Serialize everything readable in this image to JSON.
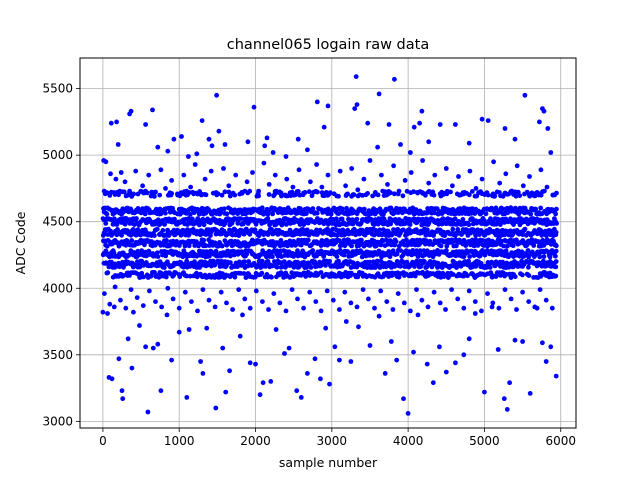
{
  "chart_data": {
    "type": "scatter",
    "title": "channel065 logain raw data",
    "xlabel": "sample number",
    "ylabel": "ADC Code",
    "xlim": [
      -300,
      6200
    ],
    "ylim": [
      2950,
      5730
    ],
    "xticks": [
      0,
      1000,
      2000,
      3000,
      4000,
      5000,
      6000
    ],
    "yticks": [
      3000,
      3500,
      4000,
      4500,
      5000,
      5500
    ],
    "grid": true,
    "marker_color": "#0000ff",
    "series": [
      {
        "x_range": [
          0,
          5950
        ],
        "points": [
          [
            10,
            4960
          ],
          [
            40,
            4950
          ],
          [
            110,
            5240
          ],
          [
            180,
            5250
          ],
          [
            200,
            5080
          ],
          [
            350,
            5310
          ],
          [
            370,
            5330
          ],
          [
            560,
            5230
          ],
          [
            650,
            5340
          ],
          [
            720,
            5060
          ],
          [
            850,
            5030
          ],
          [
            930,
            5120
          ],
          [
            1030,
            5140
          ],
          [
            1120,
            4990
          ],
          [
            1230,
            5010
          ],
          [
            1300,
            5260
          ],
          [
            1390,
            5120
          ],
          [
            1430,
            5070
          ],
          [
            1490,
            5450
          ],
          [
            1520,
            5180
          ],
          [
            1600,
            5080
          ],
          [
            1900,
            5100
          ],
          [
            1980,
            5360
          ],
          [
            2120,
            5070
          ],
          [
            2150,
            5130
          ],
          [
            2230,
            5020
          ],
          [
            2400,
            4990
          ],
          [
            2560,
            5120
          ],
          [
            2680,
            5040
          ],
          [
            2810,
            5400
          ],
          [
            2900,
            5210
          ],
          [
            2950,
            5370
          ],
          [
            3300,
            5350
          ],
          [
            3320,
            5590
          ],
          [
            3330,
            5380
          ],
          [
            3470,
            5240
          ],
          [
            3600,
            5060
          ],
          [
            3620,
            5460
          ],
          [
            3750,
            5230
          ],
          [
            3820,
            5570
          ],
          [
            3900,
            5080
          ],
          [
            4030,
            5020
          ],
          [
            4080,
            5210
          ],
          [
            4150,
            5240
          ],
          [
            4180,
            5330
          ],
          [
            4270,
            5100
          ],
          [
            4420,
            5230
          ],
          [
            4620,
            5230
          ],
          [
            4800,
            5090
          ],
          [
            4970,
            5270
          ],
          [
            5050,
            5260
          ],
          [
            5270,
            5200
          ],
          [
            5400,
            5120
          ],
          [
            5530,
            5450
          ],
          [
            5720,
            5250
          ],
          [
            5760,
            5350
          ],
          [
            5780,
            5330
          ],
          [
            5830,
            5200
          ],
          [
            5870,
            5020
          ],
          [
            0,
            3820
          ],
          [
            60,
            3810
          ],
          [
            80,
            3330
          ],
          [
            120,
            3320
          ],
          [
            150,
            3860
          ],
          [
            210,
            3470
          ],
          [
            250,
            3230
          ],
          [
            260,
            3170
          ],
          [
            330,
            3620
          ],
          [
            380,
            3400
          ],
          [
            400,
            3820
          ],
          [
            480,
            3720
          ],
          [
            560,
            3560
          ],
          [
            590,
            3070
          ],
          [
            660,
            3550
          ],
          [
            720,
            3580
          ],
          [
            760,
            3230
          ],
          [
            840,
            3800
          ],
          [
            900,
            3460
          ],
          [
            1000,
            3670
          ],
          [
            1100,
            3180
          ],
          [
            1130,
            3690
          ],
          [
            1280,
            3450
          ],
          [
            1310,
            3360
          ],
          [
            1360,
            3700
          ],
          [
            1480,
            3100
          ],
          [
            1570,
            3550
          ],
          [
            1610,
            3220
          ],
          [
            1660,
            3380
          ],
          [
            1800,
            3640
          ],
          [
            1830,
            3800
          ],
          [
            1930,
            3440
          ],
          [
            2000,
            3430
          ],
          [
            2060,
            3200
          ],
          [
            2100,
            3290
          ],
          [
            2200,
            3300
          ],
          [
            2270,
            3690
          ],
          [
            2380,
            3510
          ],
          [
            2440,
            3550
          ],
          [
            2540,
            3230
          ],
          [
            2600,
            3180
          ],
          [
            2680,
            3360
          ],
          [
            2780,
            3470
          ],
          [
            2850,
            3320
          ],
          [
            2920,
            3700
          ],
          [
            2970,
            3280
          ],
          [
            3040,
            3560
          ],
          [
            3100,
            3460
          ],
          [
            3190,
            3750
          ],
          [
            3250,
            3450
          ],
          [
            3350,
            3710
          ],
          [
            3500,
            3570
          ],
          [
            3620,
            3790
          ],
          [
            3700,
            3360
          ],
          [
            3780,
            3600
          ],
          [
            3850,
            3460
          ],
          [
            3940,
            3170
          ],
          [
            4000,
            3060
          ],
          [
            4070,
            3520
          ],
          [
            4130,
            3800
          ],
          [
            4250,
            3430
          ],
          [
            4330,
            3290
          ],
          [
            4410,
            3560
          ],
          [
            4500,
            3370
          ],
          [
            4620,
            3440
          ],
          [
            4730,
            3500
          ],
          [
            4800,
            3620
          ],
          [
            4880,
            3810
          ],
          [
            5000,
            3220
          ],
          [
            5100,
            3860
          ],
          [
            5180,
            3540
          ],
          [
            5260,
            3170
          ],
          [
            5300,
            3090
          ],
          [
            5330,
            3290
          ],
          [
            5400,
            3610
          ],
          [
            5500,
            3600
          ],
          [
            5600,
            3210
          ],
          [
            5690,
            3850
          ],
          [
            5760,
            3590
          ],
          [
            5810,
            3450
          ],
          [
            5870,
            3560
          ],
          [
            5940,
            3340
          ],
          [
            30,
            4710
          ],
          [
            100,
            4860
          ],
          [
            170,
            4820
          ],
          [
            240,
            4870
          ],
          [
            290,
            4800
          ],
          [
            350,
            4730
          ],
          [
            430,
            4880
          ],
          [
            520,
            4770
          ],
          [
            600,
            4850
          ],
          [
            680,
            4720
          ],
          [
            760,
            4890
          ],
          [
            820,
            4750
          ],
          [
            900,
            4810
          ],
          [
            980,
            4700
          ],
          [
            1060,
            4850
          ],
          [
            1150,
            4760
          ],
          [
            1210,
            4930
          ],
          [
            1270,
            4720
          ],
          [
            1340,
            4820
          ],
          [
            1420,
            4880
          ],
          [
            1510,
            4710
          ],
          [
            1580,
            4900
          ],
          [
            1650,
            4770
          ],
          [
            1740,
            4850
          ],
          [
            1820,
            4720
          ],
          [
            1890,
            4800
          ],
          [
            1960,
            4870
          ],
          [
            2040,
            4730
          ],
          [
            2110,
            4940
          ],
          [
            2180,
            4780
          ],
          [
            2260,
            4850
          ],
          [
            2340,
            4700
          ],
          [
            2410,
            4820
          ],
          [
            2490,
            4760
          ],
          [
            2570,
            4890
          ],
          [
            2650,
            4720
          ],
          [
            2720,
            4800
          ],
          [
            2800,
            4930
          ],
          [
            2870,
            4760
          ],
          [
            2950,
            4850
          ],
          [
            3030,
            4710
          ],
          [
            3110,
            4880
          ],
          [
            3180,
            4770
          ],
          [
            3260,
            4900
          ],
          [
            3340,
            4740
          ],
          [
            3420,
            4820
          ],
          [
            3500,
            4960
          ],
          [
            3570,
            4720
          ],
          [
            3650,
            4850
          ],
          [
            3730,
            4780
          ],
          [
            3810,
            4920
          ],
          [
            3880,
            4730
          ],
          [
            3960,
            4810
          ],
          [
            4040,
            4870
          ],
          [
            4120,
            4720
          ],
          [
            4190,
            4960
          ],
          [
            4270,
            4790
          ],
          [
            4350,
            4850
          ],
          [
            4420,
            4710
          ],
          [
            4500,
            4900
          ],
          [
            4580,
            4770
          ],
          [
            4660,
            4840
          ],
          [
            4740,
            4720
          ],
          [
            4810,
            4880
          ],
          [
            4890,
            4750
          ],
          [
            4970,
            4820
          ],
          [
            5050,
            4700
          ],
          [
            5120,
            4950
          ],
          [
            5200,
            4790
          ],
          [
            5280,
            4860
          ],
          [
            5360,
            4730
          ],
          [
            5430,
            4920
          ],
          [
            5510,
            4770
          ],
          [
            5590,
            4840
          ],
          [
            5660,
            4710
          ],
          [
            5740,
            4890
          ],
          [
            5820,
            4760
          ],
          [
            5900,
            4700
          ],
          [
            20,
            3960
          ],
          [
            90,
            3880
          ],
          [
            160,
            4010
          ],
          [
            230,
            3910
          ],
          [
            300,
            3850
          ],
          [
            370,
            3990
          ],
          [
            450,
            3930
          ],
          [
            530,
            3870
          ],
          [
            610,
            3980
          ],
          [
            690,
            3900
          ],
          [
            770,
            3860
          ],
          [
            850,
            4000
          ],
          [
            920,
            3920
          ],
          [
            1000,
            3850
          ],
          [
            1080,
            3970
          ],
          [
            1160,
            3900
          ],
          [
            1240,
            3830
          ],
          [
            1310,
            3990
          ],
          [
            1390,
            3910
          ],
          [
            1470,
            3860
          ],
          [
            1550,
            3970
          ],
          [
            1620,
            3890
          ],
          [
            1700,
            3840
          ],
          [
            1780,
            3990
          ],
          [
            1860,
            3920
          ],
          [
            1930,
            3850
          ],
          [
            2010,
            3980
          ],
          [
            2090,
            3900
          ],
          [
            2170,
            3840
          ],
          [
            2240,
            3960
          ],
          [
            2320,
            3890
          ],
          [
            2400,
            3830
          ],
          [
            2480,
            3990
          ],
          [
            2550,
            3920
          ],
          [
            2630,
            3850
          ],
          [
            2710,
            3970
          ],
          [
            2790,
            3900
          ],
          [
            2860,
            3830
          ],
          [
            2940,
            3980
          ],
          [
            3020,
            3910
          ],
          [
            3100,
            3840
          ],
          [
            3170,
            3970
          ],
          [
            3250,
            3890
          ],
          [
            3330,
            3860
          ],
          [
            3410,
            3990
          ],
          [
            3480,
            3920
          ],
          [
            3560,
            3850
          ],
          [
            3640,
            3980
          ],
          [
            3720,
            3900
          ],
          [
            3800,
            3840
          ],
          [
            3870,
            3960
          ],
          [
            3950,
            3890
          ],
          [
            4030,
            3830
          ],
          [
            4110,
            3990
          ],
          [
            4180,
            3910
          ],
          [
            4260,
            3860
          ],
          [
            4340,
            3970
          ],
          [
            4420,
            3890
          ],
          [
            4490,
            3840
          ],
          [
            4570,
            3990
          ],
          [
            4650,
            3920
          ],
          [
            4730,
            3850
          ],
          [
            4800,
            3980
          ],
          [
            4880,
            3900
          ],
          [
            4960,
            3830
          ],
          [
            5040,
            3960
          ],
          [
            5110,
            3890
          ],
          [
            5190,
            3850
          ],
          [
            5270,
            3990
          ],
          [
            5350,
            3920
          ],
          [
            5420,
            3840
          ],
          [
            5500,
            3970
          ],
          [
            5580,
            3900
          ],
          [
            5660,
            3860
          ],
          [
            5730,
            3990
          ],
          [
            5810,
            3910
          ],
          [
            5890,
            3850
          ]
        ],
        "bands": [
          {
            "y": 4710,
            "spread": 20,
            "density": 0.45
          },
          {
            "y": 4580,
            "spread": 25,
            "density": 0.92
          },
          {
            "y": 4500,
            "spread": 25,
            "density": 0.92
          },
          {
            "y": 4420,
            "spread": 25,
            "density": 0.92
          },
          {
            "y": 4340,
            "spread": 25,
            "density": 0.92
          },
          {
            "y": 4260,
            "spread": 25,
            "density": 0.92
          },
          {
            "y": 4180,
            "spread": 25,
            "density": 0.92
          },
          {
            "y": 4100,
            "spread": 20,
            "density": 0.6
          }
        ]
      }
    ]
  }
}
